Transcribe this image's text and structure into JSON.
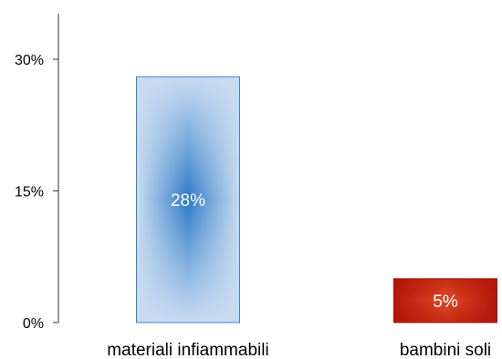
{
  "chart_data": {
    "type": "bar",
    "categories": [
      "materiali infiammabili",
      "bambini soli"
    ],
    "values": [
      28,
      5
    ],
    "value_labels": [
      "28%",
      "5%"
    ],
    "ylim": [
      0,
      30
    ],
    "yticks": [
      0,
      15,
      30
    ],
    "ytick_labels": [
      "0%",
      "15%",
      "30%"
    ],
    "grid": false,
    "legend": "none",
    "colors": {
      "bar_1_center": "#2d7ac6",
      "bar_1_edge": "#c9dcf1",
      "bar_1_border": "#3a80c8",
      "bar_2_center": "#d93a1a",
      "bar_2_edge": "#b31608",
      "bar_2_border": "#9e1208",
      "axis": "#333333"
    }
  }
}
